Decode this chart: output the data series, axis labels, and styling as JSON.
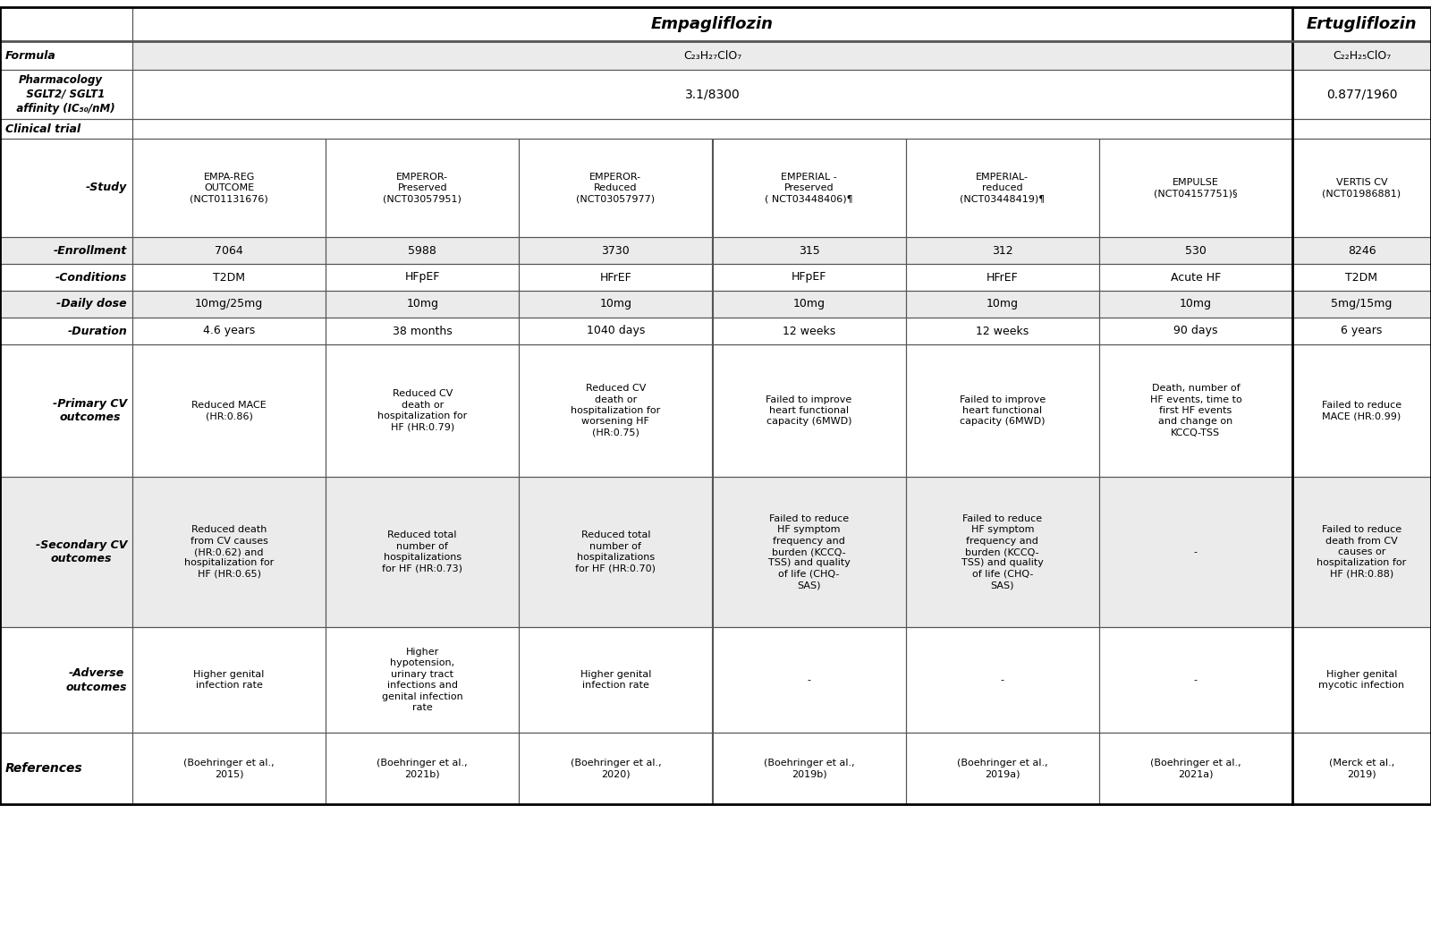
{
  "title_empa": "Empagliflozin",
  "title_ertu": "Ertugliflozin",
  "bg_color": "#ffffff",
  "row_bg_alt": "#ebebeb",
  "row_bg_white": "#ffffff",
  "border_color": "#555555",
  "formula_empa": "C₂₃H₂₇ClO₇",
  "formula_ertu": "C₂₂H₂₅ClO₇",
  "affinity_empa": "3.1/8300",
  "affinity_ertu": "0.877/1960",
  "study_data": [
    [
      "EMPA-REG\nOUTCOME\n(NCT01131676)",
      "EMPEROR-\nPreserved\n(NCT03057951)",
      "EMPEROR-\nReduced\n(NCT03057977)",
      "EMPERIAL -\nPreserved\n( NCT03448406)¶",
      "EMPERIAL-\nreduced\n(NCT03448419)¶",
      "EMPULSE\n(NCT04157751)§",
      "VERTIS CV\n(NCT01986881)"
    ],
    [
      "7064",
      "5988",
      "3730",
      "315",
      "312",
      "530",
      "8246"
    ],
    [
      "T2DM",
      "HFpEF",
      "HFrEF",
      "HFpEF",
      "HFrEF",
      "Acute HF",
      "T2DM"
    ],
    [
      "10mg/25mg",
      "10mg",
      "10mg",
      "10mg",
      "10mg",
      "10mg",
      "5mg/15mg"
    ],
    [
      "4.6 years",
      "38 months",
      "1040 days",
      "12 weeks",
      "12 weeks",
      "90 days",
      "6 years"
    ],
    [
      "Reduced MACE\n(HR:0.86)",
      "Reduced CV\ndeath or\nhospitalization for\nHF (HR:0.79)",
      "Reduced CV\ndeath or\nhospitalization for\nworsening HF\n(HR:0.75)",
      "Failed to improve\nheart functional\ncapacity (6MWD)",
      "Failed to improve\nheart functional\ncapacity (6MWD)",
      "Death, number of\nHF events, time to\nfirst HF events\nand change on\nKCCQ-TSS",
      "Failed to reduce\nMACE (HR:0.99)"
    ],
    [
      "Reduced death\nfrom CV causes\n(HR:0.62) and\nhospitalization for\nHF (HR:0.65)",
      "Reduced total\nnumber of\nhospitalizations\nfor HF (HR:0.73)",
      "Reduced total\nnumber of\nhospitalizations\nfor HF (HR:0.70)",
      "Failed to reduce\nHF symptom\nfrequency and\nburden (KCCQ-\nTSS) and quality\nof life (CHQ-\nSAS)",
      "Failed to reduce\nHF symptom\nfrequency and\nburden (KCCQ-\nTSS) and quality\nof life (CHQ-\nSAS)",
      "-",
      "Failed to reduce\ndeath from CV\ncauses or\nhospitalization for\nHF (HR:0.88)"
    ],
    [
      "Higher genital\ninfection rate",
      "Higher\nhypotension,\nurinary tract\ninfections and\ngenital infection\nrate",
      "Higher genital\ninfection rate",
      "-",
      "-",
      "-",
      "Higher genital\nmycotic infection"
    ],
    [
      "(Boehringer et al.,\n2015)",
      "(Boehringer et al.,\n2021b)",
      "(Boehringer et al.,\n2020)",
      "(Boehringer et al.,\n2019b)",
      "(Boehringer et al.,\n2019a)",
      "(Boehringer et al.,\n2021a)",
      "(Merck et al.,\n2019)"
    ]
  ]
}
